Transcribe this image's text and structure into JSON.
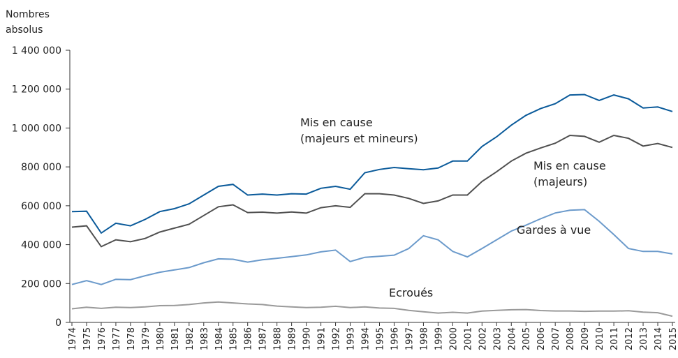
{
  "chart_data": {
    "type": "line",
    "ylabel": [
      "Nombres",
      "absolus"
    ],
    "categories": [
      "1974",
      "1975",
      "1976",
      "1977",
      "1978",
      "1979",
      "1980",
      "1981",
      "1982",
      "1983",
      "1984",
      "1985",
      "1986",
      "1987",
      "1988",
      "1989",
      "1990",
      "1991",
      "1992",
      "1993",
      "1994",
      "1995",
      "1996",
      "1997",
      "1998",
      "1999",
      "2000",
      "2001",
      "2002",
      "2003",
      "2004",
      "2005",
      "2006",
      "2007",
      "2008",
      "2009",
      "2010",
      "2011",
      "2012",
      "2013",
      "2014",
      "2015"
    ],
    "ylim": [
      0,
      1400000
    ],
    "yticks": [
      0,
      {
        "value": 200000,
        "label": "200 000"
      },
      {
        "value": 400000,
        "label": "400 000"
      },
      {
        "value": 600000,
        "label": "600 000"
      },
      {
        "value": 800000,
        "label": "800 000"
      },
      {
        "value": 1000000,
        "label": "1 000 000"
      },
      {
        "value": 1200000,
        "label": "1 200 000"
      },
      {
        "value": 1400000,
        "label": "1 400 000"
      }
    ],
    "series": [
      {
        "name": [
          "Mis en cause",
          "(majeurs et mineurs)"
        ],
        "color": "#0a5a9a",
        "values": [
          570000,
          572000,
          460000,
          510000,
          497000,
          530000,
          570000,
          585000,
          610000,
          655000,
          700000,
          710000,
          655000,
          660000,
          655000,
          662000,
          660000,
          690000,
          700000,
          685000,
          770000,
          787000,
          797000,
          791000,
          785000,
          794000,
          830000,
          830000,
          905000,
          955000,
          1015000,
          1065000,
          1100000,
          1125000,
          1170000,
          1172000,
          1142000,
          1170000,
          1150000,
          1103000,
          1108000,
          1085000
        ]
      },
      {
        "name": [
          "Mis en cause",
          "(majeurs)"
        ],
        "color": "#505050",
        "values": [
          490000,
          497000,
          390000,
          425000,
          415000,
          432000,
          465000,
          485000,
          505000,
          550000,
          595000,
          605000,
          565000,
          567000,
          562000,
          568000,
          562000,
          590000,
          600000,
          592000,
          662000,
          662000,
          655000,
          638000,
          612000,
          625000,
          655000,
          655000,
          725000,
          775000,
          830000,
          870000,
          897000,
          922000,
          962000,
          957000,
          927000,
          962000,
          947000,
          907000,
          920000,
          900000
        ]
      },
      {
        "name": [
          "Gardes à vue"
        ],
        "color": "#6b9acb",
        "values": [
          195000,
          215000,
          195000,
          222000,
          220000,
          240000,
          258000,
          270000,
          282000,
          307000,
          327000,
          325000,
          310000,
          322000,
          330000,
          338000,
          347000,
          363000,
          372000,
          313000,
          335000,
          340000,
          346000,
          380000,
          446000,
          425000,
          365000,
          337000,
          380000,
          425000,
          470000,
          500000,
          533000,
          563000,
          577000,
          580000,
          520000,
          452000,
          380000,
          365000,
          365000,
          352000
        ]
      },
      {
        "name": [
          "Ecroués"
        ],
        "color": "#9a9a9a",
        "values": [
          70000,
          78000,
          72000,
          78000,
          76000,
          80000,
          86000,
          87000,
          92000,
          100000,
          105000,
          100000,
          95000,
          92000,
          84000,
          80000,
          76000,
          78000,
          83000,
          76000,
          80000,
          74000,
          72000,
          62000,
          55000,
          48000,
          52000,
          48000,
          58000,
          62000,
          65000,
          66000,
          61000,
          59000,
          59000,
          57000,
          58000,
          58000,
          60000,
          53000,
          50000,
          32000
        ]
      }
    ]
  }
}
